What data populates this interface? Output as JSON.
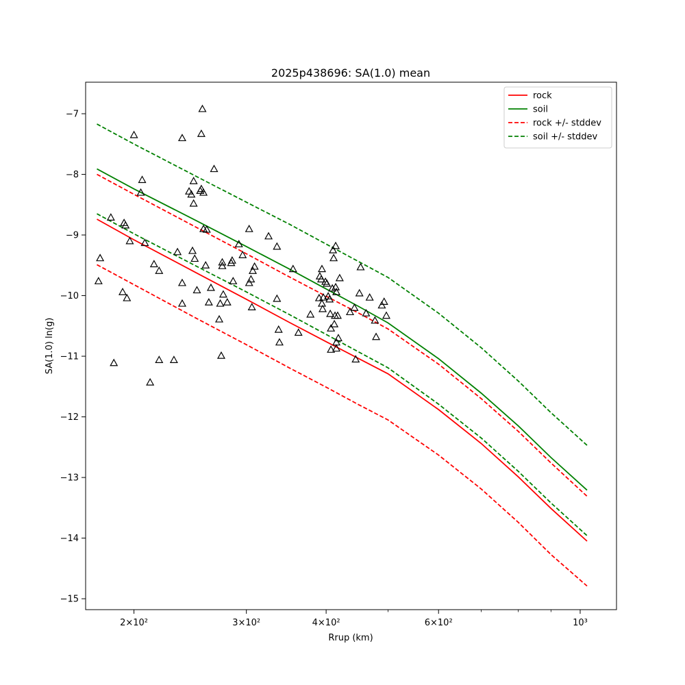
{
  "chart_data": {
    "type": "scatter",
    "title": "2025p438696: SA(1.0) mean",
    "xlabel": "Rrup (km)",
    "ylabel": "SA(1.0) ln(g)",
    "xscale": "log",
    "xlim": [
      168,
      1140
    ],
    "ylim": [
      -15.18,
      -6.48
    ],
    "x_ticks": [
      {
        "value": 200,
        "label": "2×10²"
      },
      {
        "value": 300,
        "label": "3×10²"
      },
      {
        "value": 400,
        "label": "4×10²"
      },
      {
        "value": 600,
        "label": "6×10²"
      },
      {
        "value": 1000,
        "label": "10³"
      }
    ],
    "x_minor_ticks": [
      500,
      700,
      800,
      900
    ],
    "y_ticks": [
      {
        "value": -7,
        "label": "−7"
      },
      {
        "value": -8,
        "label": "−8"
      },
      {
        "value": -9,
        "label": "−9"
      },
      {
        "value": -10,
        "label": "−10"
      },
      {
        "value": -11,
        "label": "−11"
      },
      {
        "value": -12,
        "label": "−12"
      },
      {
        "value": -13,
        "label": "−13"
      },
      {
        "value": -14,
        "label": "−14"
      },
      {
        "value": -15,
        "label": "−15"
      }
    ],
    "grid": false,
    "legend": {
      "position": "top-right",
      "entries": [
        {
          "label": "rock",
          "color": "#ff0000",
          "style": "solid"
        },
        {
          "label": "soil",
          "color": "#008000",
          "style": "solid"
        },
        {
          "label": "rock +/- stddev",
          "color": "#ff0000",
          "style": "dashed"
        },
        {
          "label": "soil +/- stddev",
          "color": "#008000",
          "style": "dashed"
        }
      ]
    },
    "lines": [
      {
        "name": "rock",
        "color": "#ff0000",
        "style": "solid",
        "x": [
          175,
          200,
          250,
          300,
          350,
          400,
          450,
          500,
          600,
          700,
          800,
          900,
          1025
        ],
        "y": [
          -8.74,
          -9.08,
          -9.62,
          -10.06,
          -10.44,
          -10.76,
          -11.04,
          -11.29,
          -11.88,
          -12.44,
          -12.99,
          -13.51,
          -14.05
        ]
      },
      {
        "name": "soil",
        "color": "#008000",
        "style": "solid",
        "x": [
          175,
          200,
          250,
          300,
          350,
          400,
          450,
          500,
          600,
          700,
          800,
          900,
          1025
        ],
        "y": [
          -7.91,
          -8.24,
          -8.76,
          -9.19,
          -9.56,
          -9.89,
          -10.18,
          -10.45,
          -11.04,
          -11.61,
          -12.15,
          -12.67,
          -13.21
        ]
      },
      {
        "name": "rock + stddev",
        "color": "#ff0000",
        "style": "dashed",
        "x": [
          175,
          200,
          250,
          300,
          350,
          400,
          450,
          500,
          600,
          700,
          800,
          900,
          1025
        ],
        "y": [
          -8.0,
          -8.33,
          -8.87,
          -9.31,
          -9.69,
          -10.01,
          -10.29,
          -10.55,
          -11.13,
          -11.7,
          -12.24,
          -12.76,
          -13.31
        ]
      },
      {
        "name": "rock - stddev",
        "color": "#ff0000",
        "style": "dashed",
        "x": [
          175,
          200,
          250,
          300,
          350,
          400,
          450,
          500,
          600,
          700,
          800,
          900,
          1025
        ],
        "y": [
          -9.49,
          -9.82,
          -10.37,
          -10.81,
          -11.19,
          -11.51,
          -11.8,
          -12.05,
          -12.63,
          -13.19,
          -13.74,
          -14.27,
          -14.79
        ]
      },
      {
        "name": "soil + stddev",
        "color": "#008000",
        "style": "dashed",
        "x": [
          175,
          200,
          250,
          300,
          350,
          400,
          450,
          500,
          600,
          700,
          800,
          900,
          1025
        ],
        "y": [
          -7.17,
          -7.5,
          -8.03,
          -8.46,
          -8.82,
          -9.15,
          -9.44,
          -9.7,
          -10.29,
          -10.86,
          -11.41,
          -11.93,
          -12.47
        ]
      },
      {
        "name": "soil - stddev",
        "color": "#008000",
        "style": "dashed",
        "x": [
          175,
          200,
          250,
          300,
          350,
          400,
          450,
          500,
          600,
          700,
          800,
          900,
          1025
        ],
        "y": [
          -8.65,
          -8.98,
          -9.51,
          -9.94,
          -10.31,
          -10.64,
          -10.93,
          -11.19,
          -11.79,
          -12.35,
          -12.9,
          -13.42,
          -13.96
        ]
      }
    ],
    "observations": {
      "marker": "triangle",
      "color": "#000000",
      "points": [
        {
          "x": 184,
          "y": -8.71
        },
        {
          "x": 177,
          "y": -9.38
        },
        {
          "x": 176,
          "y": -9.76
        },
        {
          "x": 186,
          "y": -11.11
        },
        {
          "x": 192,
          "y": -9.94
        },
        {
          "x": 193,
          "y": -8.8
        },
        {
          "x": 194,
          "y": -8.84
        },
        {
          "x": 195,
          "y": -10.04
        },
        {
          "x": 197,
          "y": -9.1
        },
        {
          "x": 200,
          "y": -7.35
        },
        {
          "x": 205,
          "y": -8.3
        },
        {
          "x": 206,
          "y": -8.09
        },
        {
          "x": 208,
          "y": -9.13
        },
        {
          "x": 212,
          "y": -11.43
        },
        {
          "x": 215,
          "y": -9.48
        },
        {
          "x": 219,
          "y": -9.59
        },
        {
          "x": 219,
          "y": -11.06
        },
        {
          "x": 231,
          "y": -11.06
        },
        {
          "x": 234,
          "y": -9.28
        },
        {
          "x": 238,
          "y": -7.4
        },
        {
          "x": 238,
          "y": -9.79
        },
        {
          "x": 238,
          "y": -10.13
        },
        {
          "x": 244,
          "y": -8.28
        },
        {
          "x": 246,
          "y": -8.33
        },
        {
          "x": 247,
          "y": -9.26
        },
        {
          "x": 248,
          "y": -8.11
        },
        {
          "x": 248,
          "y": -8.48
        },
        {
          "x": 249,
          "y": -9.39
        },
        {
          "x": 251,
          "y": -9.91
        },
        {
          "x": 254,
          "y": -8.27
        },
        {
          "x": 255,
          "y": -7.33
        },
        {
          "x": 255,
          "y": -8.24
        },
        {
          "x": 256,
          "y": -6.92
        },
        {
          "x": 257,
          "y": -8.3
        },
        {
          "x": 257,
          "y": -8.9
        },
        {
          "x": 259,
          "y": -9.5
        },
        {
          "x": 260,
          "y": -8.91
        },
        {
          "x": 262,
          "y": -10.11
        },
        {
          "x": 264,
          "y": -9.87
        },
        {
          "x": 267,
          "y": -7.91
        },
        {
          "x": 272,
          "y": -10.39
        },
        {
          "x": 273,
          "y": -10.13
        },
        {
          "x": 274,
          "y": -10.99
        },
        {
          "x": 275,
          "y": -9.45
        },
        {
          "x": 275,
          "y": -9.51
        },
        {
          "x": 276,
          "y": -9.98
        },
        {
          "x": 280,
          "y": -10.11
        },
        {
          "x": 284,
          "y": -9.46
        },
        {
          "x": 285,
          "y": -9.42
        },
        {
          "x": 286,
          "y": -9.76
        },
        {
          "x": 292,
          "y": -9.15
        },
        {
          "x": 296,
          "y": -9.33
        },
        {
          "x": 303,
          "y": -8.9
        },
        {
          "x": 303,
          "y": -9.79
        },
        {
          "x": 305,
          "y": -9.73
        },
        {
          "x": 306,
          "y": -10.19
        },
        {
          "x": 307,
          "y": -9.59
        },
        {
          "x": 309,
          "y": -9.52
        },
        {
          "x": 325,
          "y": -9.02
        },
        {
          "x": 335,
          "y": -9.19
        },
        {
          "x": 335,
          "y": -10.05
        },
        {
          "x": 337,
          "y": -10.56
        },
        {
          "x": 338,
          "y": -10.77
        },
        {
          "x": 355,
          "y": -9.56
        },
        {
          "x": 362,
          "y": -10.61
        },
        {
          "x": 378,
          "y": -10.31
        },
        {
          "x": 390,
          "y": -10.04
        },
        {
          "x": 391,
          "y": -9.68
        },
        {
          "x": 393,
          "y": -9.73
        },
        {
          "x": 394,
          "y": -9.56
        },
        {
          "x": 394,
          "y": -10.13
        },
        {
          "x": 395,
          "y": -10.22
        },
        {
          "x": 396,
          "y": -10.03
        },
        {
          "x": 399,
          "y": -9.77
        },
        {
          "x": 401,
          "y": -9.8
        },
        {
          "x": 403,
          "y": -10.01
        },
        {
          "x": 405,
          "y": -10.06
        },
        {
          "x": 406,
          "y": -10.3
        },
        {
          "x": 407,
          "y": -10.54
        },
        {
          "x": 407,
          "y": -10.89
        },
        {
          "x": 409,
          "y": -9.88
        },
        {
          "x": 410,
          "y": -9.25
        },
        {
          "x": 411,
          "y": -9.38
        },
        {
          "x": 412,
          "y": -10.47
        },
        {
          "x": 413,
          "y": -10.33
        },
        {
          "x": 414,
          "y": -9.18
        },
        {
          "x": 414,
          "y": -9.86
        },
        {
          "x": 415,
          "y": -9.94
        },
        {
          "x": 415,
          "y": -10.77
        },
        {
          "x": 415,
          "y": -10.87
        },
        {
          "x": 417,
          "y": -10.33
        },
        {
          "x": 418,
          "y": -10.7
        },
        {
          "x": 420,
          "y": -9.71
        },
        {
          "x": 436,
          "y": -10.27
        },
        {
          "x": 443,
          "y": -10.2
        },
        {
          "x": 445,
          "y": -11.05
        },
        {
          "x": 451,
          "y": -9.96
        },
        {
          "x": 453,
          "y": -9.53
        },
        {
          "x": 462,
          "y": -10.29
        },
        {
          "x": 468,
          "y": -10.03
        },
        {
          "x": 477,
          "y": -10.41
        },
        {
          "x": 479,
          "y": -10.68
        },
        {
          "x": 489,
          "y": -10.16
        },
        {
          "x": 493,
          "y": -10.1
        },
        {
          "x": 497,
          "y": -10.33
        }
      ]
    }
  }
}
